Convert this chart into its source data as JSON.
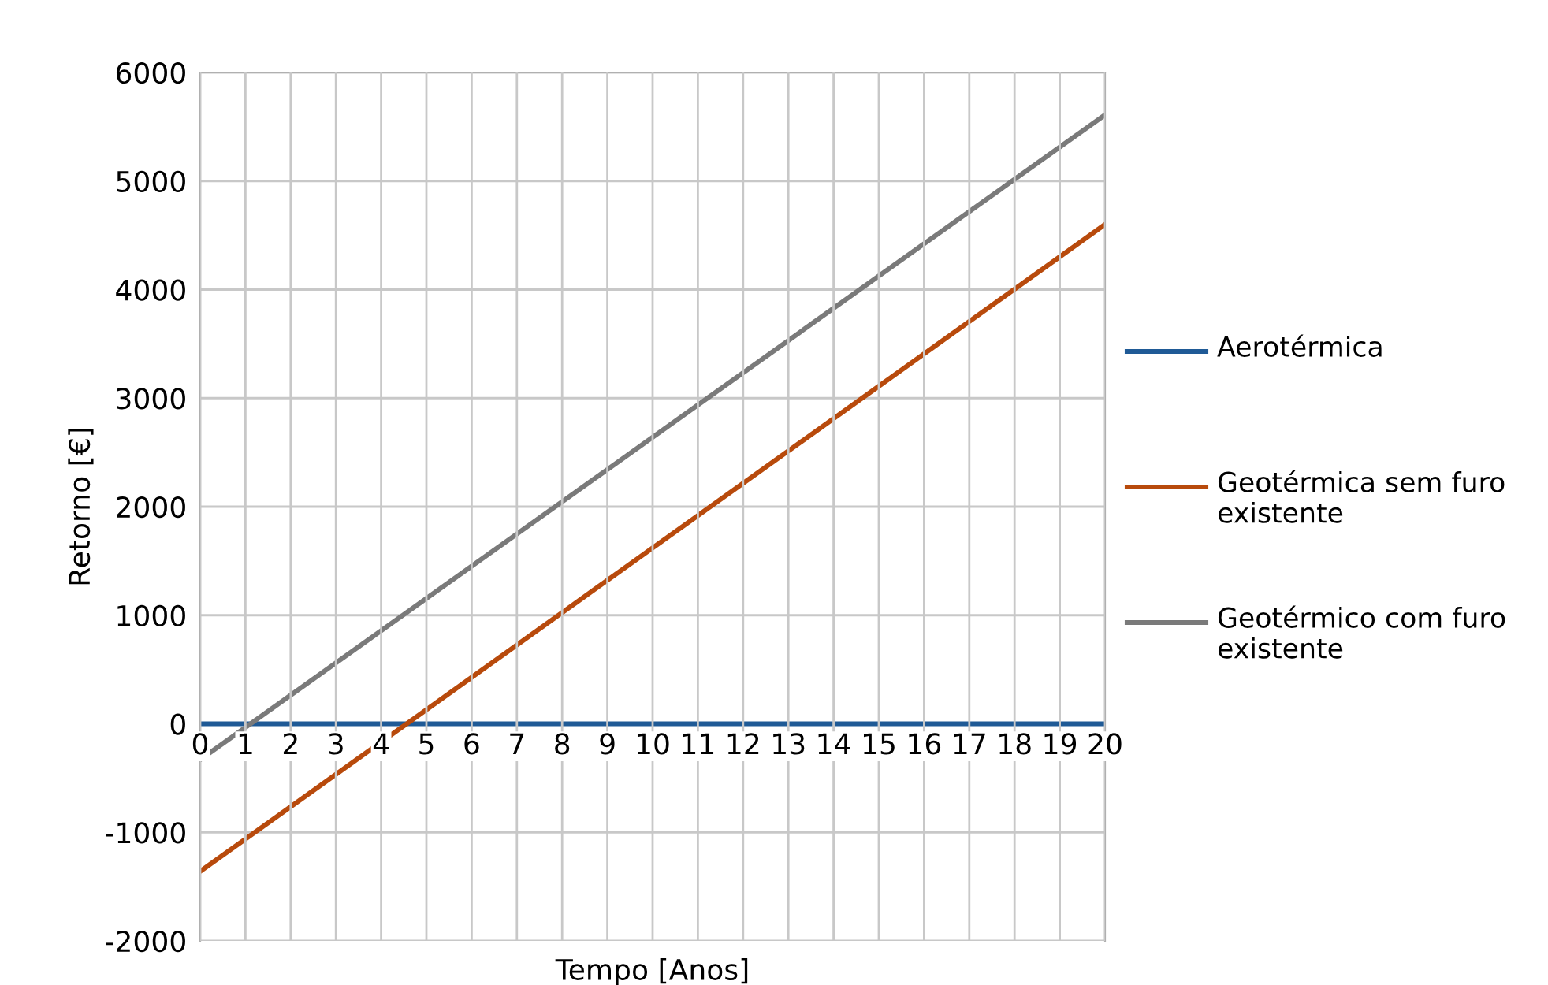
{
  "chart_data": {
    "type": "line",
    "xlabel": "Tempo [Anos]",
    "ylabel": "Retorno [€]",
    "x": [
      0,
      20
    ],
    "xlim": [
      0,
      20
    ],
    "xticks": [
      0,
      1,
      2,
      3,
      4,
      5,
      6,
      7,
      8,
      9,
      10,
      11,
      12,
      13,
      14,
      15,
      16,
      17,
      18,
      19,
      20
    ],
    "ylim": [
      -2000,
      6000
    ],
    "yticks": [
      -2000,
      -1000,
      0,
      1000,
      2000,
      3000,
      4000,
      5000,
      6000
    ],
    "grid": true,
    "legend": "right",
    "marker": "none",
    "line_style": "solid",
    "series": [
      {
        "name": "Aerotérmica",
        "color": "#1f5a96",
        "values": [
          0,
          0
        ]
      },
      {
        "name": "Geotérmica sem furo existente",
        "color": "#b84a0c",
        "values": [
          -1360,
          4600
        ]
      },
      {
        "name": "Geotérmico com furo existente",
        "color": "#7a7a7a",
        "values": [
          -330,
          5610
        ]
      }
    ]
  }
}
